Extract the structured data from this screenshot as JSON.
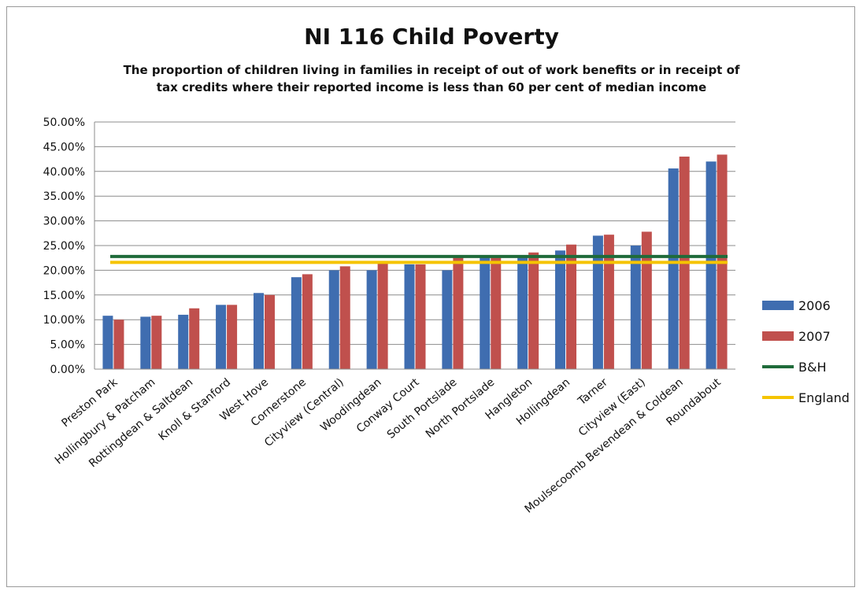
{
  "chart_data": {
    "type": "bar",
    "title": "NI 116 Child Poverty",
    "subtitle_lines": [
      "The proportion of children living in families in receipt of out of work benefits or in receipt of",
      "tax credits  where their reported income is less than 60 per cent of median income"
    ],
    "categories": [
      "Preston Park",
      "Hollingbury & Patcham",
      "Rottingdean & Saltdean",
      "Knoll & Stanford",
      "West Hove",
      "Cornerstone",
      "Cityview (Central)",
      "Woodingdean",
      "Conway Court",
      "South Portslade",
      "North Portslade",
      "Hangleton",
      "Hollingdean",
      "Tarner",
      "Cityview (East)",
      "Moulsecoomb Bevendean & Coldean",
      "Roundabout"
    ],
    "series": [
      {
        "name": "2006",
        "color": "#3f6db0",
        "values": [
          10.8,
          10.6,
          11.0,
          13.0,
          15.4,
          18.6,
          20.0,
          20.0,
          21.2,
          20.0,
          22.6,
          23.0,
          24.0,
          27.0,
          25.0,
          40.6,
          42.0
        ]
      },
      {
        "name": "2007",
        "color": "#c0504d",
        "values": [
          10.0,
          10.8,
          12.3,
          13.0,
          15.0,
          19.2,
          20.8,
          21.4,
          21.2,
          22.8,
          22.6,
          23.6,
          25.2,
          27.2,
          27.8,
          43.0,
          43.4
        ]
      }
    ],
    "reference_lines": [
      {
        "name": "B&H",
        "color": "#1f6b3a",
        "value": 22.8
      },
      {
        "name": "England",
        "color": "#f5c400",
        "value": 21.6
      }
    ],
    "y_ticks": [
      "0.00%",
      "5.00%",
      "10.00%",
      "15.00%",
      "20.00%",
      "25.00%",
      "30.00%",
      "35.00%",
      "40.00%",
      "45.00%",
      "50.00%"
    ],
    "ylim": [
      0,
      50
    ],
    "ystep": 5,
    "grid": true,
    "legend": "right"
  }
}
